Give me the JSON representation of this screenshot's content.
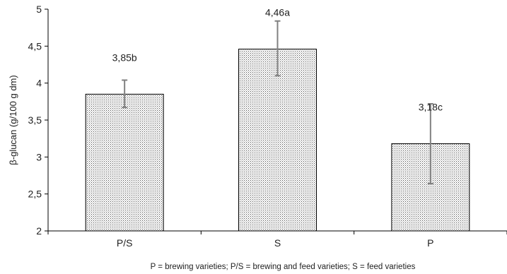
{
  "chart_data": {
    "type": "bar",
    "categories": [
      "P/S",
      "S",
      "P"
    ],
    "values": [
      3.85,
      4.46,
      3.18
    ],
    "error_bars": [
      {
        "low": 3.67,
        "high": 4.04
      },
      {
        "low": 4.1,
        "high": 4.84
      },
      {
        "low": 2.64,
        "high": 3.72
      }
    ],
    "data_labels": [
      "3,85b",
      "4,46a",
      "3,18c"
    ],
    "ylabel": "β-glucan (g/100 g dm)",
    "xlabel": "",
    "ylim": [
      2,
      5
    ],
    "yticks": [
      2,
      2.5,
      3,
      3.5,
      4,
      4.5,
      5
    ],
    "ytick_labels": [
      "2",
      "2,5",
      "3",
      "3,5",
      "4",
      "4,5",
      "5"
    ],
    "footnote": "P = brewing varieties; P/S = brewing and feed varieties; S = feed varieties",
    "grid": false,
    "bar_fill": "dotted",
    "colors": {
      "bar_stroke": "#000000",
      "bar_dots": "#555555",
      "error_bar": "#808080",
      "axis": "#000000"
    }
  }
}
